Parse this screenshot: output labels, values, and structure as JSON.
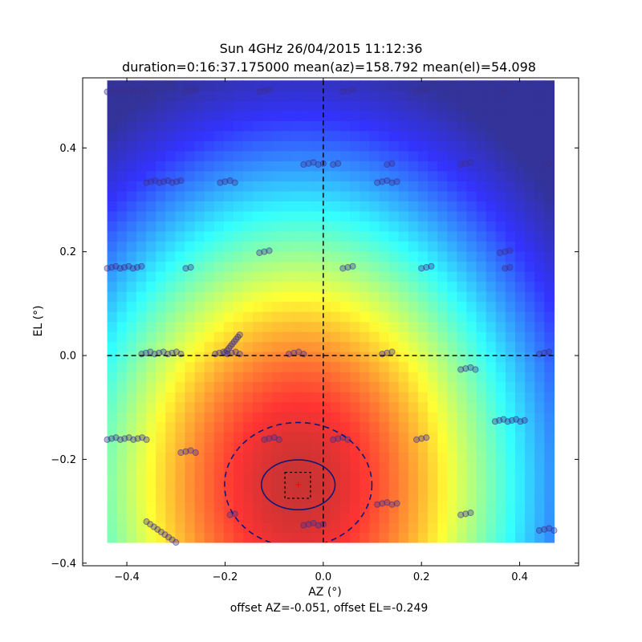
{
  "title_line1": "Sun 4GHz 26/04/2015 11:12:36",
  "title_line2": "duration=0:16:37.175000 mean(az)=158.792 mean(el)=54.098",
  "footer": "offset AZ=-0.051, offset EL=-0.249",
  "chart_data": {
    "type": "heatmap",
    "xlabel": "AZ (°)",
    "ylabel": "EL (°)",
    "xlim": [
      -0.49,
      0.52
    ],
    "ylim": [
      -0.405,
      0.535
    ],
    "xticks": [
      -0.4,
      -0.2,
      0.0,
      0.2,
      0.4
    ],
    "yticks": [
      -0.4,
      -0.2,
      0.0,
      0.2,
      0.4
    ],
    "xtick_labels": [
      "−0.4",
      "−0.2",
      "0.0",
      "0.2",
      "0.4"
    ],
    "ytick_labels": [
      "−0.4",
      "−0.2",
      "0.0",
      "0.2",
      "0.4"
    ],
    "heatmap_extent": {
      "x": [
        -0.44,
        0.47
      ],
      "y": [
        -0.36,
        0.53
      ]
    },
    "peak": {
      "az": -0.051,
      "el": -0.249
    },
    "colormap": "jet",
    "crosshair": {
      "az": 0.0,
      "el": 0.0
    },
    "offset_point": {
      "az": -0.051,
      "el": -0.249,
      "color": "#ff0000"
    },
    "offset_box": {
      "az": [
        -0.078,
        -0.026
      ],
      "el": [
        -0.275,
        -0.225
      ]
    },
    "beam_solid_ellipse": {
      "center": [
        -0.051,
        -0.249
      ],
      "radii": [
        0.075,
        0.048
      ]
    },
    "beam_dashed_ellipse": {
      "center": [
        -0.051,
        -0.249
      ],
      "radii": [
        0.15,
        0.12
      ]
    },
    "ellipse_color": "#0a1a78",
    "scan_rows": [
      {
        "el": 0.51,
        "segments": [
          [
            -0.44,
            -0.36
          ],
          [
            -0.28,
            -0.26
          ],
          [
            -0.13,
            -0.11
          ],
          [
            0.04,
            0.06
          ],
          [
            0.19,
            0.21
          ],
          [
            0.36,
            0.37
          ]
        ]
      },
      {
        "el": 0.37,
        "segments": [
          [
            -0.04,
            0.0
          ],
          [
            0.02,
            0.03
          ],
          [
            0.13,
            0.14
          ],
          [
            0.28,
            0.3
          ],
          [
            0.45,
            0.46
          ]
        ]
      },
      {
        "el": 0.335,
        "segments": [
          [
            -0.36,
            -0.29
          ],
          [
            -0.21,
            -0.18
          ],
          [
            0.11,
            0.15
          ]
        ]
      },
      {
        "el": 0.2,
        "segments": [
          [
            -0.13,
            -0.11
          ],
          [
            0.36,
            0.38
          ]
        ]
      },
      {
        "el": 0.17,
        "segments": [
          [
            -0.44,
            -0.37
          ],
          [
            -0.28,
            -0.27
          ],
          [
            0.04,
            0.06
          ],
          [
            0.2,
            0.22
          ],
          [
            0.37,
            0.38
          ]
        ]
      },
      {
        "el": 0.005,
        "segments": [
          [
            -0.37,
            -0.29
          ],
          [
            -0.22,
            -0.17
          ],
          [
            -0.07,
            -0.04
          ],
          [
            0.12,
            0.14
          ],
          [
            0.44,
            0.46
          ]
        ]
      },
      {
        "el": -0.025,
        "segments": [
          [
            0.28,
            0.31
          ]
        ]
      },
      {
        "el": -0.125,
        "segments": [
          [
            0.35,
            0.41
          ]
        ]
      },
      {
        "el": -0.16,
        "segments": [
          [
            -0.44,
            -0.36
          ],
          [
            -0.12,
            -0.09
          ],
          [
            0.02,
            0.05
          ],
          [
            0.19,
            0.21
          ]
        ]
      },
      {
        "el": -0.185,
        "segments": [
          [
            -0.29,
            -0.26
          ]
        ]
      },
      {
        "el": -0.285,
        "segments": [
          [
            0.11,
            0.15
          ]
        ]
      },
      {
        "el": -0.305,
        "segments": [
          [
            -0.19,
            -0.18
          ],
          [
            0.28,
            0.3
          ]
        ]
      },
      {
        "el": -0.325,
        "segments": [
          [
            -0.04,
            0.0
          ]
        ]
      },
      {
        "el": -0.335,
        "segments": [
          [
            0.44,
            0.47
          ]
        ]
      }
    ],
    "scan_diagonals": [
      {
        "from": [
          -0.36,
          -0.32
        ],
        "to": [
          -0.3,
          -0.36
        ]
      },
      {
        "from": [
          -0.2,
          0.005
        ],
        "to": [
          -0.17,
          0.04
        ]
      }
    ],
    "marker_color": "#3c2d8c"
  }
}
